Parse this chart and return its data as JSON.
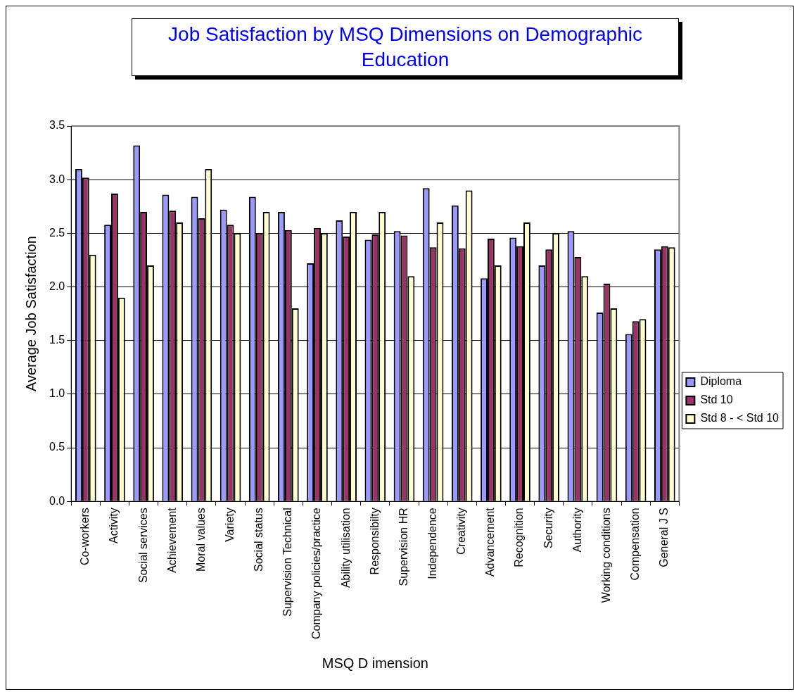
{
  "chart_data": {
    "type": "bar",
    "title": "Job Satisfaction by MSQ Dimensions on Demographic Education",
    "xlabel": "MSQ D imension",
    "ylabel": "Average Job Satisfaction",
    "categories": [
      "Co-workers",
      "Activity",
      "Social services",
      "Achievement",
      "Moral values",
      "Variety",
      "Social status",
      "Supervision Technical",
      "Company policies/practice",
      "Ability utilisation",
      "Responsibilty",
      "Supervision HR",
      "Independence",
      "Creativity",
      "Advancement",
      "Recognition",
      "Security",
      "Authority",
      "Working conditions",
      "Compensation",
      "General J S"
    ],
    "series": [
      {
        "name": "Diploma",
        "color": "#9999ff",
        "values": [
          3.1,
          2.58,
          3.32,
          2.86,
          2.84,
          2.72,
          2.84,
          2.7,
          2.22,
          2.62,
          2.44,
          2.52,
          2.92,
          2.76,
          2.08,
          2.46,
          2.2,
          2.52,
          1.76,
          1.56,
          2.35
        ]
      },
      {
        "name": "Std 10",
        "color": "#993366",
        "values": [
          3.02,
          2.87,
          2.7,
          2.71,
          2.64,
          2.58,
          2.5,
          2.53,
          2.55,
          2.47,
          2.49,
          2.48,
          2.37,
          2.36,
          2.45,
          2.38,
          2.35,
          2.28,
          2.03,
          1.68,
          2.38
        ]
      },
      {
        "name": "Std 8 - < Std 10",
        "color": "#ffffcc",
        "values": [
          2.3,
          1.9,
          2.2,
          2.6,
          3.1,
          2.5,
          2.7,
          1.8,
          2.5,
          2.7,
          2.7,
          2.1,
          2.6,
          2.9,
          2.2,
          2.6,
          2.5,
          2.1,
          1.8,
          1.7,
          2.37
        ]
      }
    ],
    "ylim": [
      0,
      3.5
    ],
    "yticks": [
      {
        "value": 0,
        "label": "0.0"
      },
      0.5,
      {
        "value": 1,
        "label": "1.0"
      },
      1.5,
      {
        "value": 2,
        "label": "2.0"
      },
      2.5,
      {
        "value": 3,
        "label": "3.0"
      },
      3.5
    ],
    "grid": "y",
    "legend": "right"
  }
}
